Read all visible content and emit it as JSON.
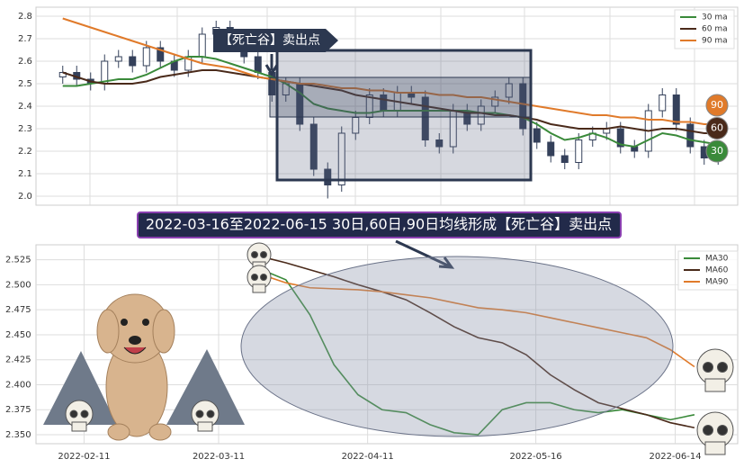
{
  "chart_data": [
    {
      "type": "candlestick",
      "annotation": "【死亡谷】卖出点",
      "up_color": "#ffffff",
      "down_color": "#34405a",
      "ylim": [
        1.96,
        2.84
      ],
      "yticks": [
        {
          "value": 2,
          "label": "2.0"
        },
        2.1,
        2.2,
        2.3,
        2.4,
        2.5,
        2.6,
        2.7,
        2.8
      ],
      "grid": true,
      "legend": "top-right",
      "open": [
        2.53,
        2.55,
        2.52,
        2.5,
        2.6,
        2.62,
        2.58,
        2.66,
        2.6,
        2.56,
        2.62,
        2.72,
        2.75,
        2.68,
        2.62,
        2.55,
        2.45,
        2.5,
        2.32,
        2.12,
        2.05,
        2.28,
        2.35,
        2.45,
        2.38,
        2.46,
        2.44,
        2.25,
        2.22,
        2.38,
        2.32,
        2.4,
        2.44,
        2.5,
        2.3,
        2.24,
        2.18,
        2.15,
        2.25,
        2.28,
        2.3,
        2.22,
        2.2,
        2.38,
        2.45,
        2.32,
        2.22,
        2.17
      ],
      "high": [
        2.58,
        2.58,
        2.55,
        2.63,
        2.65,
        2.65,
        2.69,
        2.69,
        2.63,
        2.65,
        2.75,
        2.78,
        2.78,
        2.71,
        2.65,
        2.58,
        2.53,
        2.53,
        2.35,
        2.15,
        2.31,
        2.38,
        2.48,
        2.48,
        2.49,
        2.49,
        2.47,
        2.28,
        2.41,
        2.41,
        2.43,
        2.47,
        2.53,
        2.53,
        2.33,
        2.27,
        2.21,
        2.28,
        2.31,
        2.33,
        2.33,
        2.25,
        2.41,
        2.48,
        2.48,
        2.35,
        2.25,
        2.23
      ],
      "low": [
        2.5,
        2.49,
        2.47,
        2.47,
        2.57,
        2.55,
        2.55,
        2.57,
        2.53,
        2.53,
        2.59,
        2.69,
        2.65,
        2.59,
        2.52,
        2.42,
        2.42,
        2.29,
        2.09,
        1.99,
        2.02,
        2.25,
        2.32,
        2.35,
        2.35,
        2.41,
        2.22,
        2.19,
        2.19,
        2.29,
        2.29,
        2.37,
        2.41,
        2.27,
        2.21,
        2.15,
        2.12,
        2.12,
        2.22,
        2.25,
        2.19,
        2.17,
        2.17,
        2.35,
        2.29,
        2.19,
        2.14,
        2.14
      ],
      "close": [
        2.55,
        2.52,
        2.5,
        2.6,
        2.62,
        2.58,
        2.66,
        2.6,
        2.56,
        2.62,
        2.72,
        2.75,
        2.68,
        2.62,
        2.55,
        2.45,
        2.5,
        2.32,
        2.12,
        2.05,
        2.28,
        2.35,
        2.45,
        2.38,
        2.46,
        2.44,
        2.25,
        2.22,
        2.38,
        2.32,
        2.4,
        2.44,
        2.5,
        2.3,
        2.24,
        2.18,
        2.15,
        2.25,
        2.28,
        2.3,
        2.22,
        2.2,
        2.38,
        2.45,
        2.32,
        2.22,
        2.17,
        2.2
      ],
      "series": [
        {
          "name": "30 ma",
          "badge": "30",
          "color": "#3a8a3a",
          "values": [
            2.49,
            2.49,
            2.5,
            2.51,
            2.52,
            2.52,
            2.54,
            2.57,
            2.6,
            2.62,
            2.62,
            2.61,
            2.59,
            2.57,
            2.55,
            2.53,
            2.5,
            2.46,
            2.41,
            2.39,
            2.38,
            2.37,
            2.37,
            2.38,
            2.38,
            2.38,
            2.38,
            2.38,
            2.38,
            2.38,
            2.37,
            2.37,
            2.36,
            2.35,
            2.32,
            2.28,
            2.25,
            2.26,
            2.28,
            2.26,
            2.23,
            2.22,
            2.25,
            2.28,
            2.27,
            2.25,
            2.24,
            2.23
          ]
        },
        {
          "name": "60 ma",
          "badge": "60",
          "color": "#4a2a1a",
          "values": [
            2.55,
            2.53,
            2.51,
            2.5,
            2.5,
            2.5,
            2.51,
            2.53,
            2.54,
            2.55,
            2.56,
            2.56,
            2.55,
            2.54,
            2.53,
            2.52,
            2.51,
            2.5,
            2.49,
            2.48,
            2.47,
            2.45,
            2.44,
            2.43,
            2.42,
            2.41,
            2.4,
            2.39,
            2.38,
            2.37,
            2.37,
            2.36,
            2.36,
            2.35,
            2.34,
            2.32,
            2.31,
            2.3,
            2.3,
            2.3,
            2.31,
            2.3,
            2.29,
            2.3,
            2.3,
            2.29,
            2.28,
            2.28
          ]
        },
        {
          "name": "90 ma",
          "badge": "90",
          "color": "#e07a2a",
          "values": [
            2.79,
            2.77,
            2.75,
            2.73,
            2.71,
            2.69,
            2.67,
            2.65,
            2.63,
            2.61,
            2.59,
            2.58,
            2.57,
            2.55,
            2.53,
            2.52,
            2.51,
            2.5,
            2.5,
            2.49,
            2.48,
            2.48,
            2.47,
            2.47,
            2.46,
            2.46,
            2.46,
            2.45,
            2.45,
            2.44,
            2.44,
            2.43,
            2.42,
            2.41,
            2.4,
            2.39,
            2.38,
            2.37,
            2.36,
            2.36,
            2.35,
            2.35,
            2.34,
            2.34,
            2.33,
            2.33,
            2.32,
            2.32
          ]
        }
      ]
    },
    {
      "type": "line",
      "title": "2022-03-16至2022-06-15 30日,60日,90日均线形成【死亡谷】卖出点",
      "x": [
        "2022-03-20",
        "2022-03-25",
        "2022-03-30",
        "2022-04-04",
        "2022-04-09",
        "2022-04-14",
        "2022-04-19",
        "2022-04-24",
        "2022-04-29",
        "2022-05-04",
        "2022-05-09",
        "2022-05-14",
        "2022-05-19",
        "2022-05-24",
        "2022-05-29",
        "2022-06-03",
        "2022-06-08",
        "2022-06-13",
        "2022-06-18"
      ],
      "xlim": [
        "2022-02-01",
        "2022-06-27"
      ],
      "xticks": [
        "2022-02-11",
        "2022-03-11",
        "2022-04-11",
        "2022-05-16",
        "2022-06-14"
      ],
      "ylim": [
        2.341,
        2.54
      ],
      "yticks": [
        {
          "value": 2.35,
          "label": "2.350"
        },
        2.375,
        {
          "value": 2.4,
          "label": "2.400"
        },
        2.425,
        {
          "value": 2.45,
          "label": "2.450"
        },
        2.475,
        {
          "value": 2.5,
          "label": "2.500"
        },
        2.525
      ],
      "grid": true,
      "legend": "top-right",
      "series": [
        {
          "name": "MA30",
          "color": "#3a8a3a",
          "values": [
            2.515,
            2.505,
            2.47,
            2.42,
            2.39,
            2.375,
            2.372,
            2.36,
            2.352,
            2.35,
            2.375,
            2.382,
            2.382,
            2.375,
            2.372,
            2.375,
            2.37,
            2.365,
            2.37
          ]
        },
        {
          "name": "MA60",
          "color": "#4a2a1a",
          "values": [
            2.528,
            2.522,
            2.515,
            2.508,
            2.5,
            2.493,
            2.485,
            2.472,
            2.458,
            2.447,
            2.442,
            2.43,
            2.41,
            2.395,
            2.382,
            2.376,
            2.37,
            2.362,
            2.357
          ]
        },
        {
          "name": "MA90",
          "color": "#e07a2a",
          "values": [
            2.51,
            2.502,
            2.497,
            2.496,
            2.495,
            2.493,
            2.49,
            2.487,
            2.482,
            2.477,
            2.475,
            2.472,
            2.467,
            2.462,
            2.457,
            2.452,
            2.447,
            2.435,
            2.418
          ]
        }
      ]
    }
  ]
}
